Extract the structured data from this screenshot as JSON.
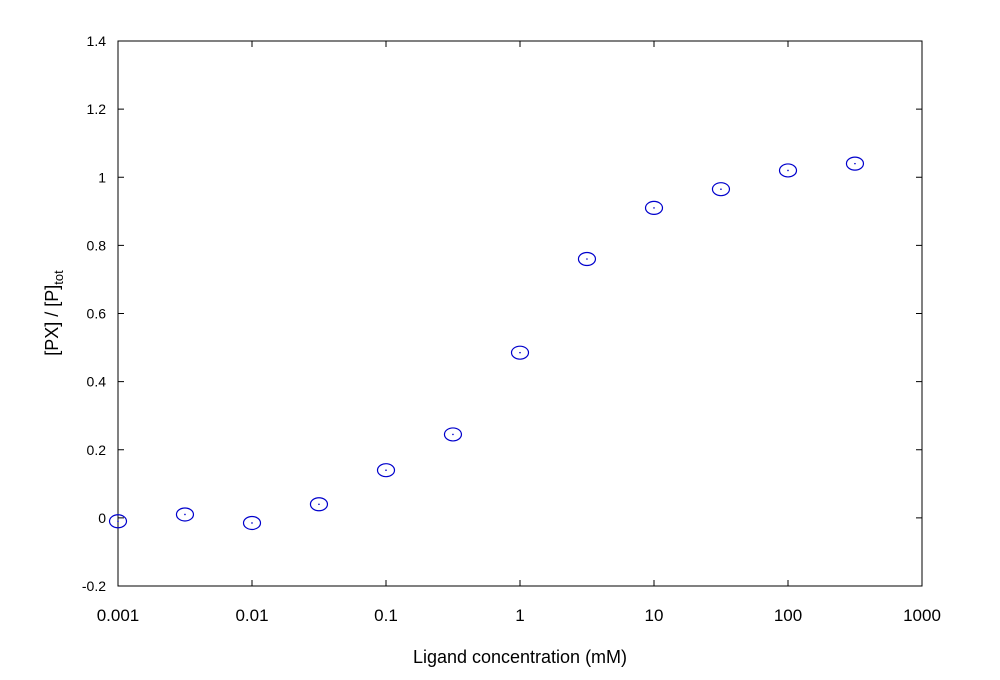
{
  "chart_data": {
    "type": "scatter",
    "xlabel": "Ligand concentration (mM)",
    "ylabel": {
      "main": "[PX] / [P]",
      "subscript": "tot"
    },
    "x_scale": "log",
    "xlim": [
      0.001,
      1000
    ],
    "ylim": [
      -0.2,
      1.4
    ],
    "x_ticks": [
      0.001,
      0.01,
      0.1,
      1,
      10,
      100,
      1000
    ],
    "x_tick_labels": [
      "0.001",
      "0.01",
      "0.1",
      "1",
      "10",
      "100",
      "1000"
    ],
    "y_ticks": [
      -0.2,
      0,
      0.2,
      0.4,
      0.6,
      0.8,
      1,
      1.2,
      1.4
    ],
    "y_tick_labels": [
      "-0.2",
      "0",
      "0.2",
      "0.4",
      "0.6",
      "0.8",
      "1",
      "1.2",
      "1.4"
    ],
    "grid": false,
    "marker_color": "#0000cc",
    "series": [
      {
        "points": [
          {
            "x": 0.001,
            "y": -0.01
          },
          {
            "x": 0.00316,
            "y": 0.01
          },
          {
            "x": 0.01,
            "y": -0.015
          },
          {
            "x": 0.0316,
            "y": 0.04
          },
          {
            "x": 0.1,
            "y": 0.14
          },
          {
            "x": 0.316,
            "y": 0.245
          },
          {
            "x": 1,
            "y": 0.485
          },
          {
            "x": 3.16,
            "y": 0.76
          },
          {
            "x": 10,
            "y": 0.91
          },
          {
            "x": 31.6,
            "y": 0.965
          },
          {
            "x": 100,
            "y": 1.02
          },
          {
            "x": 316,
            "y": 1.04
          }
        ]
      }
    ]
  }
}
